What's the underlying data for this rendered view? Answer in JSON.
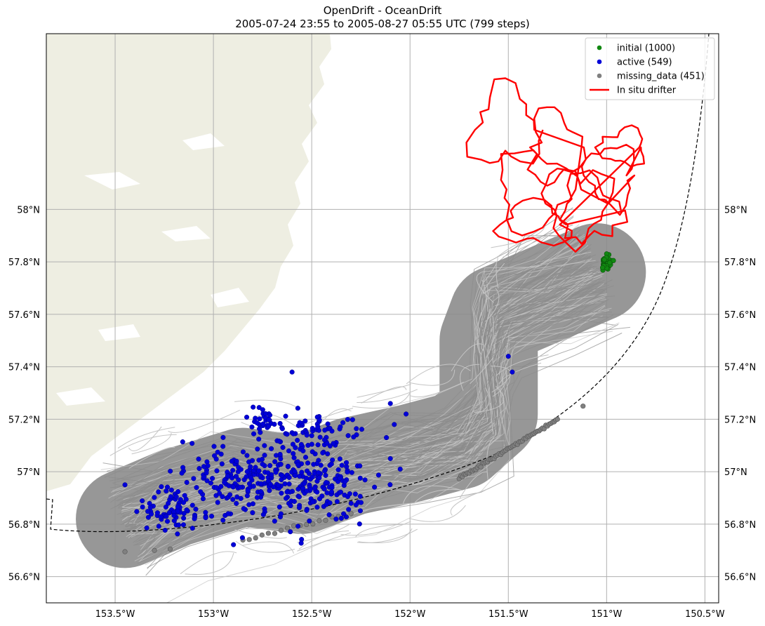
{
  "title": {
    "line1": "OpenDrift - OceanDrift",
    "line2": "2005-07-24 23:55 to 2005-08-27 05:55 UTC (799 steps)"
  },
  "map": {
    "lon_range": [
      -153.85,
      -150.43
    ],
    "lat_range": [
      56.5,
      58.67
    ],
    "grid": true,
    "legend_position": "top-right",
    "colors": {
      "land": "#eeeee2",
      "ocean": "#ffffff",
      "trajectory": "#8c8c8c",
      "trajectory_light": "#c4c4c4",
      "initial": "#118811",
      "active": "#0000d8",
      "missing": "#808080",
      "drifter": "#ff0000",
      "boundary": "#000000"
    }
  },
  "axes": {
    "x_ticks": [
      {
        "value": -153.5,
        "label": "153.5°W"
      },
      {
        "value": -153.0,
        "label": "153°W"
      },
      {
        "value": -152.5,
        "label": "152.5°W"
      },
      {
        "value": -152.0,
        "label": "152°W"
      },
      {
        "value": -151.5,
        "label": "151.5°W"
      },
      {
        "value": -151.0,
        "label": "151°W"
      },
      {
        "value": -150.5,
        "label": "150.5°W"
      }
    ],
    "y_ticks": [
      {
        "value": 56.6,
        "label": "56.6°N"
      },
      {
        "value": 56.8,
        "label": "56.8°N"
      },
      {
        "value": 57.0,
        "label": "57°N"
      },
      {
        "value": 57.2,
        "label": "57.2°N"
      },
      {
        "value": 57.4,
        "label": "57.4°N"
      },
      {
        "value": 57.6,
        "label": "57.6°N"
      },
      {
        "value": 57.8,
        "label": "57.8°N"
      },
      {
        "value": 58.0,
        "label": "58°N"
      }
    ]
  },
  "legend": {
    "entries": [
      {
        "label": "initial (1000)",
        "kind": "dot",
        "color": "#118811"
      },
      {
        "label": "active (549)",
        "kind": "dot",
        "color": "#0000d8"
      },
      {
        "label": "missing_data (451)",
        "kind": "dot",
        "color": "#808080"
      },
      {
        "label": "In situ drifter",
        "kind": "line",
        "color": "#ff0000"
      }
    ]
  },
  "elements": {
    "initial_center": {
      "lon": -151.0,
      "lat": 57.8
    },
    "trajectory_band": [
      {
        "lon": -153.45,
        "lat": 56.82
      },
      {
        "lon": -153.2,
        "lat": 56.9
      },
      {
        "lon": -152.85,
        "lat": 56.98
      },
      {
        "lon": -152.55,
        "lat": 56.95
      },
      {
        "lon": -152.3,
        "lat": 57.02
      },
      {
        "lon": -152.0,
        "lat": 57.07
      },
      {
        "lon": -151.75,
        "lat": 57.12
      },
      {
        "lon": -151.6,
        "lat": 57.22
      },
      {
        "lon": -151.6,
        "lat": 57.38
      },
      {
        "lon": -151.6,
        "lat": 57.5
      },
      {
        "lon": -151.55,
        "lat": 57.6
      },
      {
        "lon": -151.3,
        "lat": 57.68
      },
      {
        "lon": -151.05,
        "lat": 57.76
      }
    ],
    "active_clusters": [
      {
        "lon": -152.78,
        "lat": 56.98,
        "spread_lon": 0.28,
        "spread_lat": 0.14,
        "count": 230
      },
      {
        "lon": -152.45,
        "lat": 56.96,
        "spread_lon": 0.22,
        "spread_lat": 0.12,
        "count": 130
      },
      {
        "lon": -153.2,
        "lat": 56.86,
        "spread_lon": 0.18,
        "spread_lat": 0.08,
        "count": 80
      },
      {
        "lon": -152.45,
        "lat": 57.15,
        "spread_lon": 0.2,
        "spread_lat": 0.07,
        "count": 60
      },
      {
        "lon": -152.75,
        "lat": 57.2,
        "spread_lon": 0.07,
        "spread_lat": 0.06,
        "count": 30
      }
    ],
    "active_outliers": [
      {
        "lon": -152.6,
        "lat": 57.38
      },
      {
        "lon": -151.5,
        "lat": 57.44
      },
      {
        "lon": -151.48,
        "lat": 57.38
      },
      {
        "lon": -152.02,
        "lat": 57.22
      },
      {
        "lon": -152.1,
        "lat": 57.26
      },
      {
        "lon": -152.08,
        "lat": 57.18
      },
      {
        "lon": -152.12,
        "lat": 57.13
      },
      {
        "lon": -152.1,
        "lat": 57.05
      },
      {
        "lon": -152.05,
        "lat": 57.01
      },
      {
        "lon": -153.45,
        "lat": 56.95
      }
    ],
    "missing_line": [
      {
        "lon": -153.45,
        "lat": 56.695,
        "count": 1
      },
      {
        "lon": -153.3,
        "lat": 56.7,
        "count": 1
      },
      {
        "lon": -153.22,
        "lat": 56.705,
        "count": 1
      },
      {
        "lon": -152.85,
        "lat": 56.74,
        "count": 18,
        "to_lon": -152.3,
        "to_lat": 56.84
      },
      {
        "lon": -151.75,
        "lat": 56.975,
        "count": 60,
        "to_lon": -151.25,
        "to_lat": 57.2
      },
      {
        "lon": -151.12,
        "lat": 57.25,
        "count": 1
      }
    ]
  }
}
